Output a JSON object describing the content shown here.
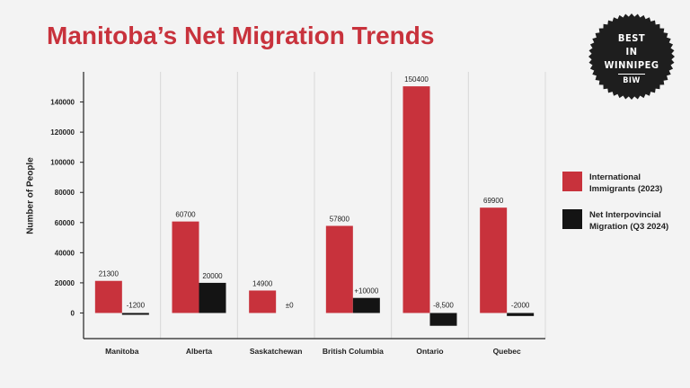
{
  "page": {
    "title": "Manitoba’s Net Migration Trends",
    "badge": {
      "line1": "BEST",
      "line2": "IN",
      "line3": "WINNIPEG",
      "line4": "BIW"
    }
  },
  "colors": {
    "international": "#c8323c",
    "interprovincial": "#141414",
    "title": "#c8323c"
  },
  "chart_data": {
    "type": "bar",
    "title": "Manitoba’s Net Migration Trends",
    "xlabel": "",
    "ylabel": "Number of People",
    "ylim": [
      -17000,
      160000
    ],
    "yticks": [
      0,
      20000,
      40000,
      60000,
      80000,
      100000,
      120000,
      140000
    ],
    "grid": "vertical",
    "legend": "right",
    "categories": [
      "Manitoba",
      "Alberta",
      "Saskatchewan",
      "British Columbia",
      "Ontario",
      "Quebec"
    ],
    "series": [
      {
        "name": "International Immigrants (2023)",
        "values": [
          21300,
          60700,
          14900,
          57800,
          150400,
          69900
        ],
        "labels": [
          "21300",
          "60700",
          "14900",
          "57800",
          "150400",
          "69900"
        ]
      },
      {
        "name": "Net Interpovincial Migration (Q3 2024)",
        "values": [
          -1200,
          20000,
          0,
          10000,
          -8500,
          -2000
        ],
        "labels": [
          "-1200",
          "20000",
          "±0",
          "+10000",
          "-8,500",
          "-2000"
        ]
      }
    ]
  }
}
